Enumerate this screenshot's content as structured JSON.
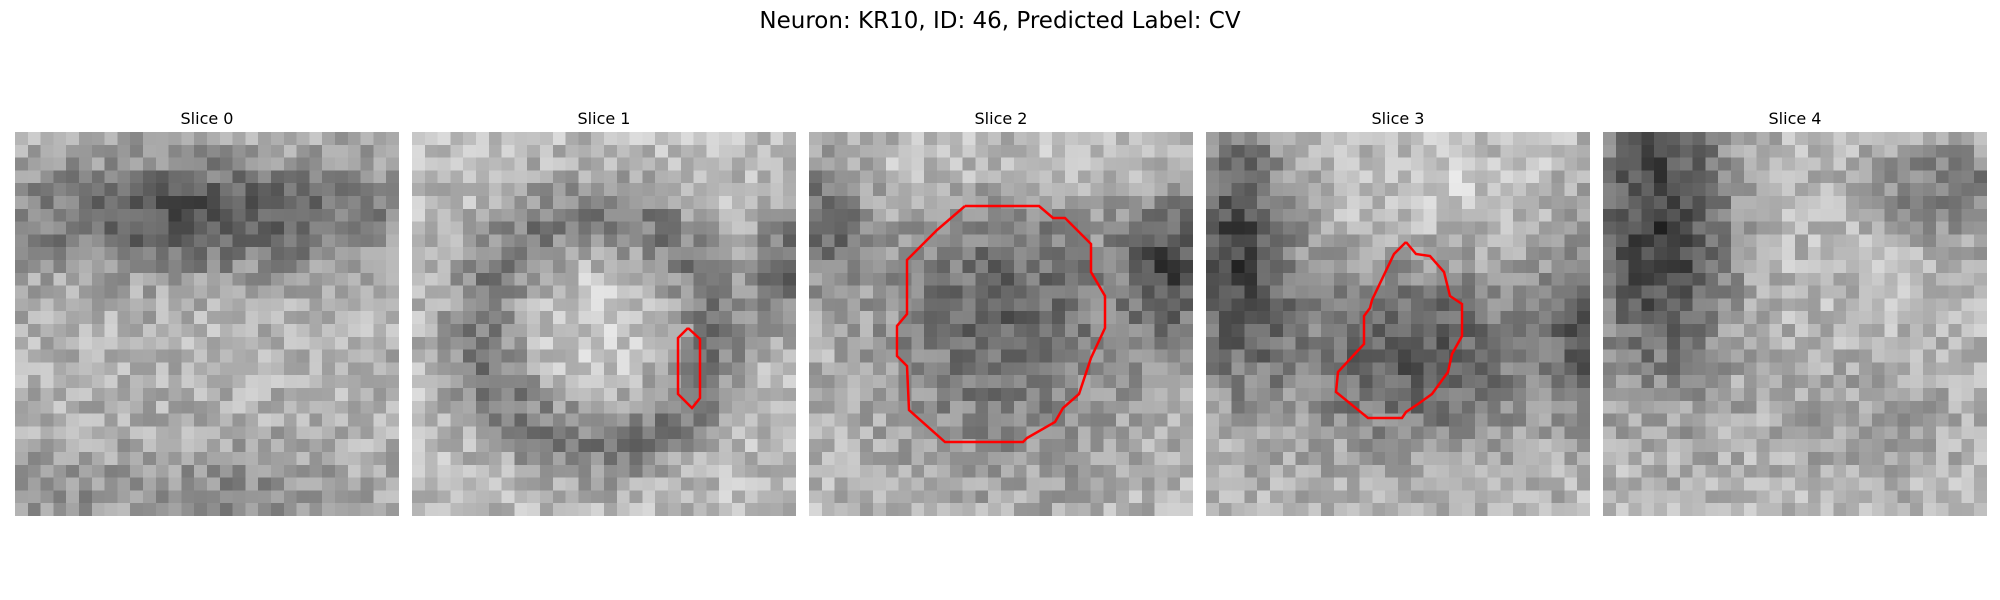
{
  "figure": {
    "title": "Neuron: KR10, ID: 46, Predicted Label: CV",
    "outline_color": "#ff0000",
    "colormap": "gray"
  },
  "panels": [
    {
      "title": "Slice 0",
      "has_contour": false
    },
    {
      "title": "Slice 1",
      "has_contour": true
    },
    {
      "title": "Slice 2",
      "has_contour": true
    },
    {
      "title": "Slice 3",
      "has_contour": true
    },
    {
      "title": "Slice 4",
      "has_contour": false
    }
  ]
}
